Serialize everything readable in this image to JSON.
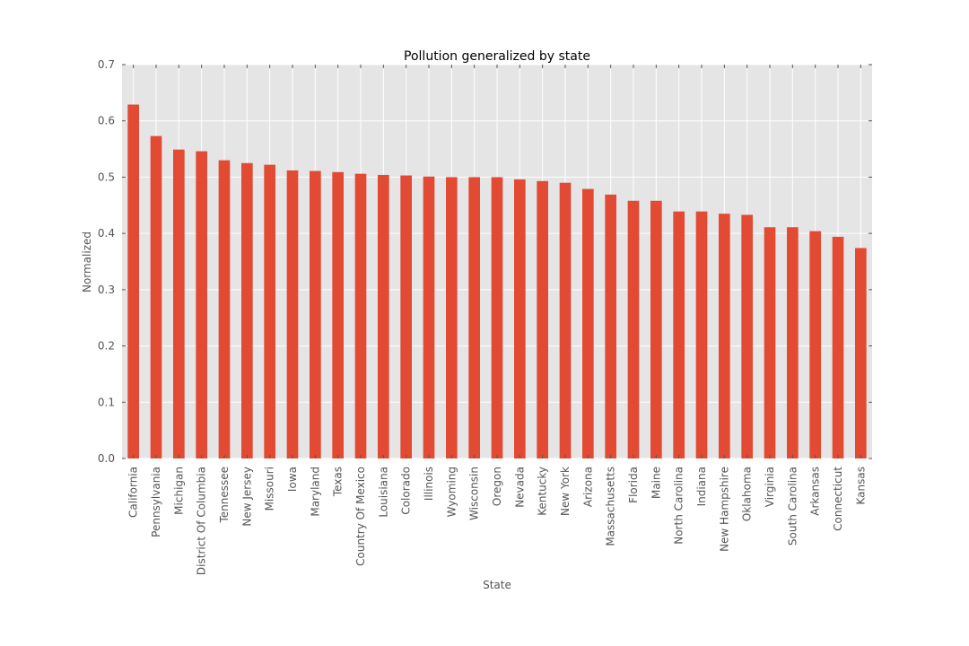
{
  "chart_data": {
    "type": "bar",
    "title": "Pollution generalized by state",
    "xlabel": "State",
    "ylabel": "Normalized",
    "ylim": [
      0,
      0.7
    ],
    "yticks": [
      "0.0",
      "0.1",
      "0.2",
      "0.3",
      "0.4",
      "0.5",
      "0.6",
      "0.7"
    ],
    "grid": true,
    "categories": [
      "California",
      "Pennsylvania",
      "Michigan",
      "District Of Columbia",
      "Tennessee",
      "New Jersey",
      "Missouri",
      "Iowa",
      "Maryland",
      "Texas",
      "Country Of Mexico",
      "Louisiana",
      "Colorado",
      "Illinois",
      "Wyoming",
      "Wisconsin",
      "Oregon",
      "Nevada",
      "Kentucky",
      "New York",
      "Arizona",
      "Massachusetts",
      "Florida",
      "Maine",
      "North Carolina",
      "Indiana",
      "New Hampshire",
      "Oklahoma",
      "Virginia",
      "South Carolina",
      "Arkansas",
      "Connecticut",
      "Kansas"
    ],
    "values": [
      0.629,
      0.573,
      0.549,
      0.546,
      0.53,
      0.525,
      0.522,
      0.512,
      0.511,
      0.509,
      0.506,
      0.504,
      0.503,
      0.501,
      0.5,
      0.5,
      0.5,
      0.496,
      0.493,
      0.49,
      0.479,
      0.469,
      0.458,
      0.458,
      0.439,
      0.439,
      0.435,
      0.433,
      0.411,
      0.411,
      0.404,
      0.394,
      0.374
    ],
    "colors": {
      "bar": "#E24A33",
      "plot_background": "#E5E5E5",
      "grid": "#FFFFFF",
      "tick_label": "#555555"
    }
  }
}
